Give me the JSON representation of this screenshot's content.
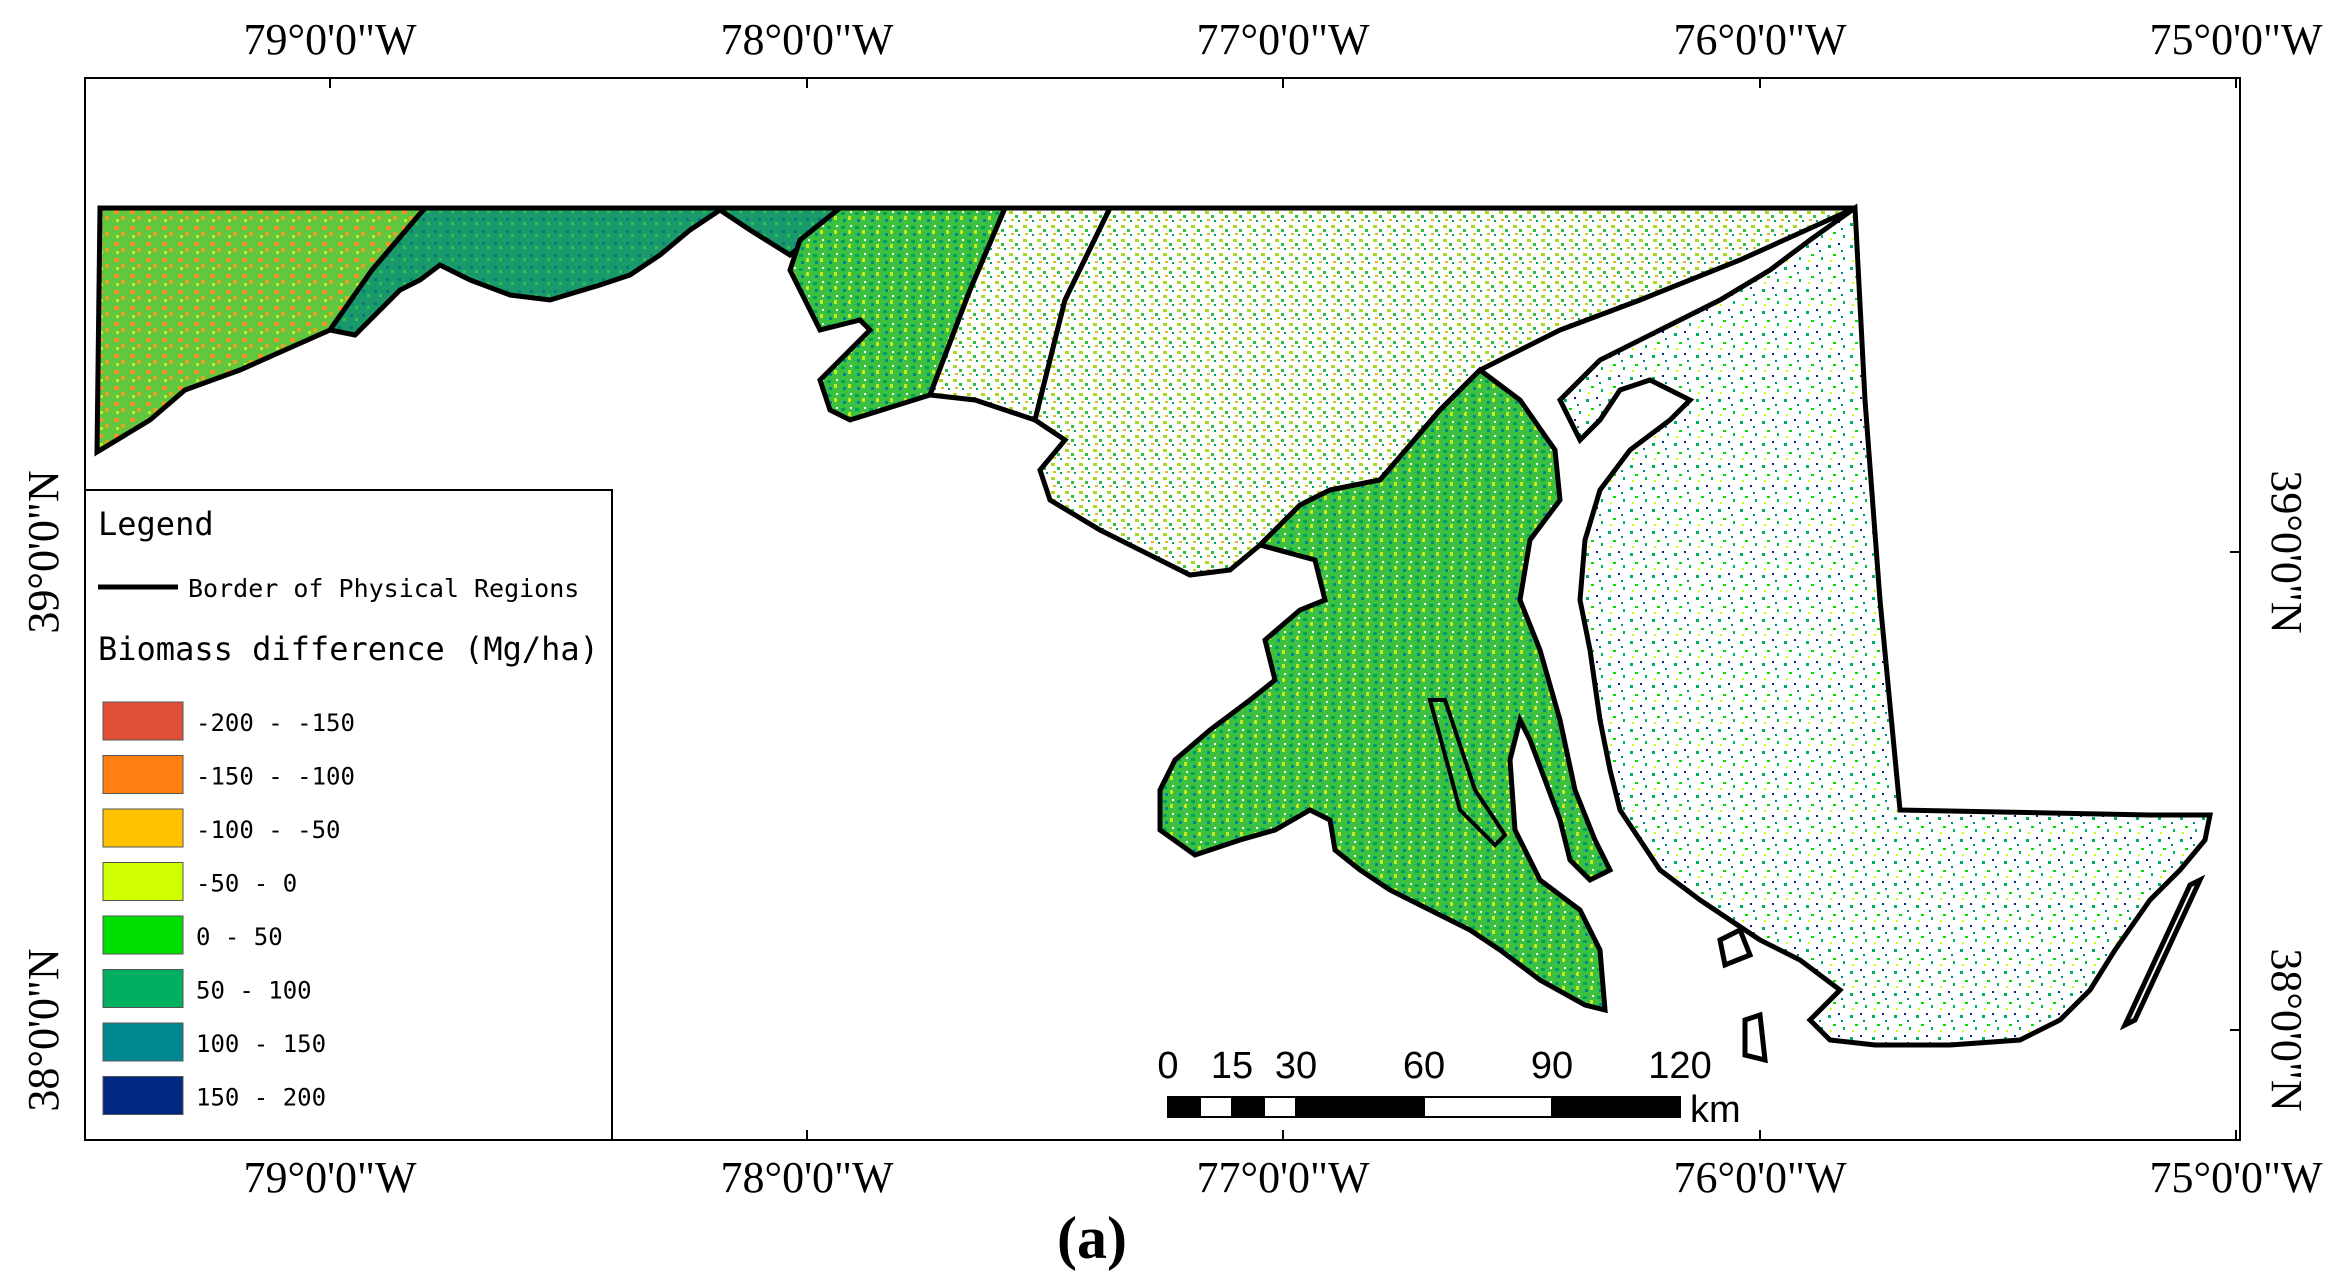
{
  "map": {
    "top_labels": [
      "79°0'0\"W",
      "78°0'0\"W",
      "77°0'0\"W",
      "76°0'0\"W",
      "75°0'0\"W"
    ],
    "bottom_labels": [
      "79°0'0\"W",
      "78°0'0\"W",
      "77°0'0\"W",
      "76°0'0\"W",
      "75°0'0\"W"
    ],
    "left_labels": [
      "39°0'0\"N",
      "38°0'0\"N"
    ],
    "right_labels": [
      "39°0'0\"N",
      "38°0'0\"N"
    ],
    "caption": "(a)"
  },
  "legend": {
    "title": "Legend",
    "border_label": "Border of Physical Regions",
    "biomass_title": "Biomass difference (Mg/ha)",
    "classes": [
      {
        "label": "-200 - -150",
        "color": "#e05038"
      },
      {
        "label": "-150 - -100",
        "color": "#ff8010"
      },
      {
        "label": "-100 - -50",
        "color": "#ffc000"
      },
      {
        "label": "-50 - 0",
        "color": "#d0ff00"
      },
      {
        "label": "0 - 50",
        "color": "#00e000"
      },
      {
        "label": "50 - 100",
        "color": "#00b060"
      },
      {
        "label": "100 - 150",
        "color": "#008890"
      },
      {
        "label": "150 - 200",
        "color": "#002880"
      }
    ]
  },
  "scalebar": {
    "ticks": [
      "0",
      "15",
      "30",
      "60",
      "90",
      "120"
    ],
    "unit": "km"
  }
}
